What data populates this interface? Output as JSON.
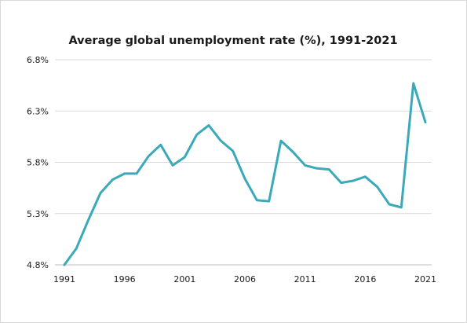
{
  "chart_data": {
    "type": "line",
    "title": "Average global unemployment rate (%), 1991-2021",
    "xlabel": "",
    "ylabel": "",
    "xlim": [
      1991,
      2021
    ],
    "ylim": [
      4.8,
      6.8
    ],
    "y_ticks": [
      4.8,
      5.3,
      5.8,
      6.3,
      6.8
    ],
    "y_tick_labels": [
      "4.8%",
      "5.3%",
      "5.8%",
      "6.3%",
      "6.8%"
    ],
    "x_ticks": [
      1991,
      1996,
      2001,
      2006,
      2011,
      2016,
      2021
    ],
    "x_tick_labels": [
      "1991",
      "1996",
      "2001",
      "2006",
      "2011",
      "2016",
      "2021"
    ],
    "grid": true,
    "legend": "none",
    "line_color": "#3aa9b8",
    "series": [
      {
        "x": [
          1991,
          1992,
          1993,
          1994,
          1995,
          1996,
          1997,
          1998,
          1999,
          2000,
          2001,
          2002,
          2003,
          2004,
          2005,
          2006,
          2007,
          2008,
          2009,
          2010,
          2011,
          2012,
          2013,
          2014,
          2015,
          2016,
          2017,
          2018,
          2019,
          2020,
          2021
        ],
        "values": [
          4.8,
          4.96,
          5.24,
          5.5,
          5.63,
          5.69,
          5.69,
          5.86,
          5.97,
          5.77,
          5.85,
          6.07,
          6.16,
          6.01,
          5.91,
          5.64,
          5.43,
          5.42,
          6.01,
          5.9,
          5.77,
          5.74,
          5.73,
          5.6,
          5.62,
          5.66,
          5.56,
          5.39,
          5.36,
          6.57,
          6.19
        ]
      }
    ]
  }
}
